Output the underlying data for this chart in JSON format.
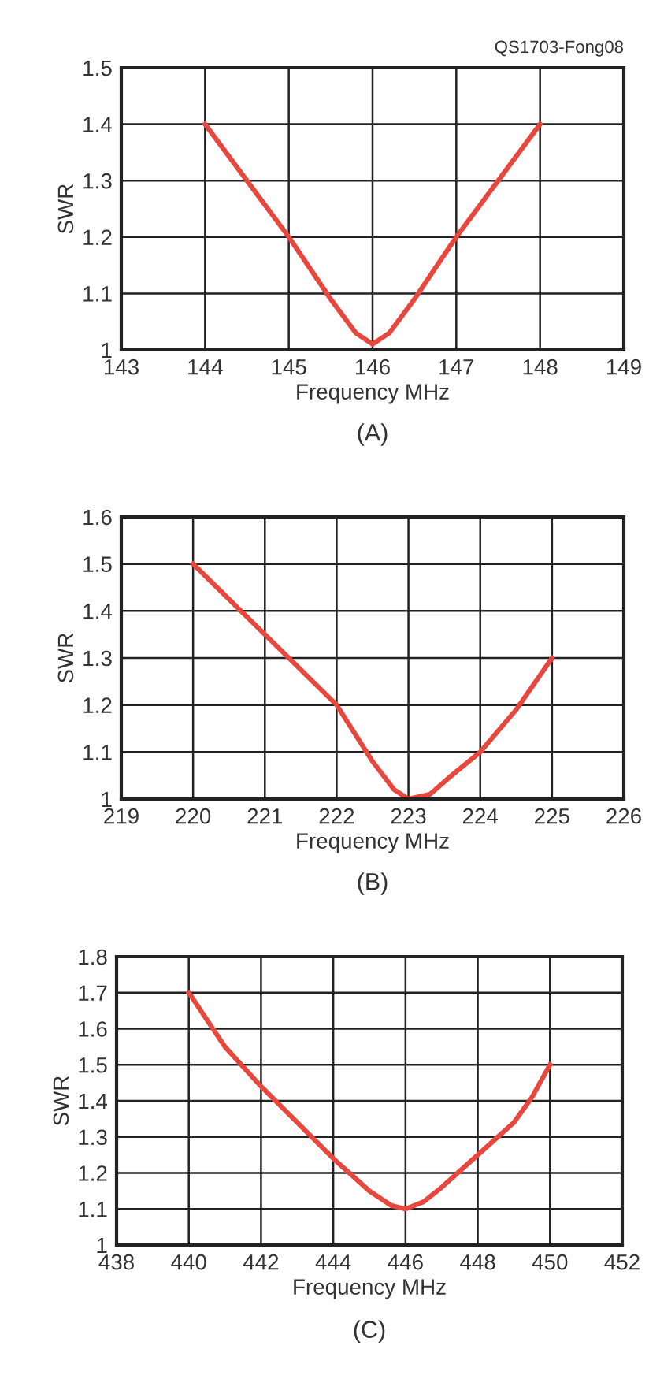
{
  "chart_data": [
    {
      "type": "line",
      "title": "(A)",
      "xlabel": "Frequency MHz",
      "ylabel": "SWR",
      "annotations": [
        "QS1703-Fong08"
      ],
      "xlim": [
        143,
        149
      ],
      "xticks": [
        143,
        144,
        145,
        146,
        147,
        148,
        149
      ],
      "ylim": [
        1,
        1.5
      ],
      "yticks": [
        1,
        1.1,
        1.2,
        1.3,
        1.4,
        1.5
      ],
      "grid": true,
      "marker": "none",
      "line_style": "solid",
      "series": [
        {
          "color": "#e8473e",
          "x": [
            144,
            145,
            145.5,
            145.8,
            146,
            146.2,
            146.5,
            147,
            148
          ],
          "values": [
            1.4,
            1.2,
            1.09,
            1.03,
            1.01,
            1.03,
            1.09,
            1.2,
            1.4
          ]
        }
      ]
    },
    {
      "type": "line",
      "title": "(B)",
      "xlabel": "Frequency MHz",
      "ylabel": "SWR",
      "xlim": [
        219,
        226
      ],
      "xticks": [
        219,
        220,
        221,
        222,
        223,
        224,
        225,
        226
      ],
      "ylim": [
        1,
        1.6
      ],
      "yticks": [
        1,
        1.1,
        1.2,
        1.3,
        1.4,
        1.5,
        1.6
      ],
      "grid": true,
      "marker": "none",
      "line_style": "solid",
      "series": [
        {
          "color": "#e8473e",
          "x": [
            220,
            221,
            222,
            222.5,
            222.8,
            223,
            223.3,
            223.6,
            224,
            224.5,
            225
          ],
          "values": [
            1.5,
            1.35,
            1.2,
            1.08,
            1.02,
            1.0,
            1.01,
            1.05,
            1.1,
            1.19,
            1.3
          ]
        }
      ]
    },
    {
      "type": "line",
      "title": "(C)",
      "xlabel": "Frequency MHz",
      "ylabel": "SWR",
      "xlim": [
        438,
        452
      ],
      "xticks": [
        438,
        440,
        442,
        444,
        446,
        448,
        450,
        452
      ],
      "ylim": [
        1,
        1.8
      ],
      "yticks": [
        1,
        1.1,
        1.2,
        1.3,
        1.4,
        1.5,
        1.6,
        1.7,
        1.8
      ],
      "grid": true,
      "marker": "none",
      "line_style": "solid",
      "series": [
        {
          "color": "#e8473e",
          "x": [
            440,
            441,
            442,
            443,
            444,
            445,
            445.6,
            446,
            446.5,
            447,
            448,
            449,
            449.5,
            450
          ],
          "values": [
            1.7,
            1.55,
            1.44,
            1.34,
            1.24,
            1.15,
            1.11,
            1.1,
            1.12,
            1.16,
            1.25,
            1.34,
            1.41,
            1.5
          ]
        }
      ]
    }
  ]
}
